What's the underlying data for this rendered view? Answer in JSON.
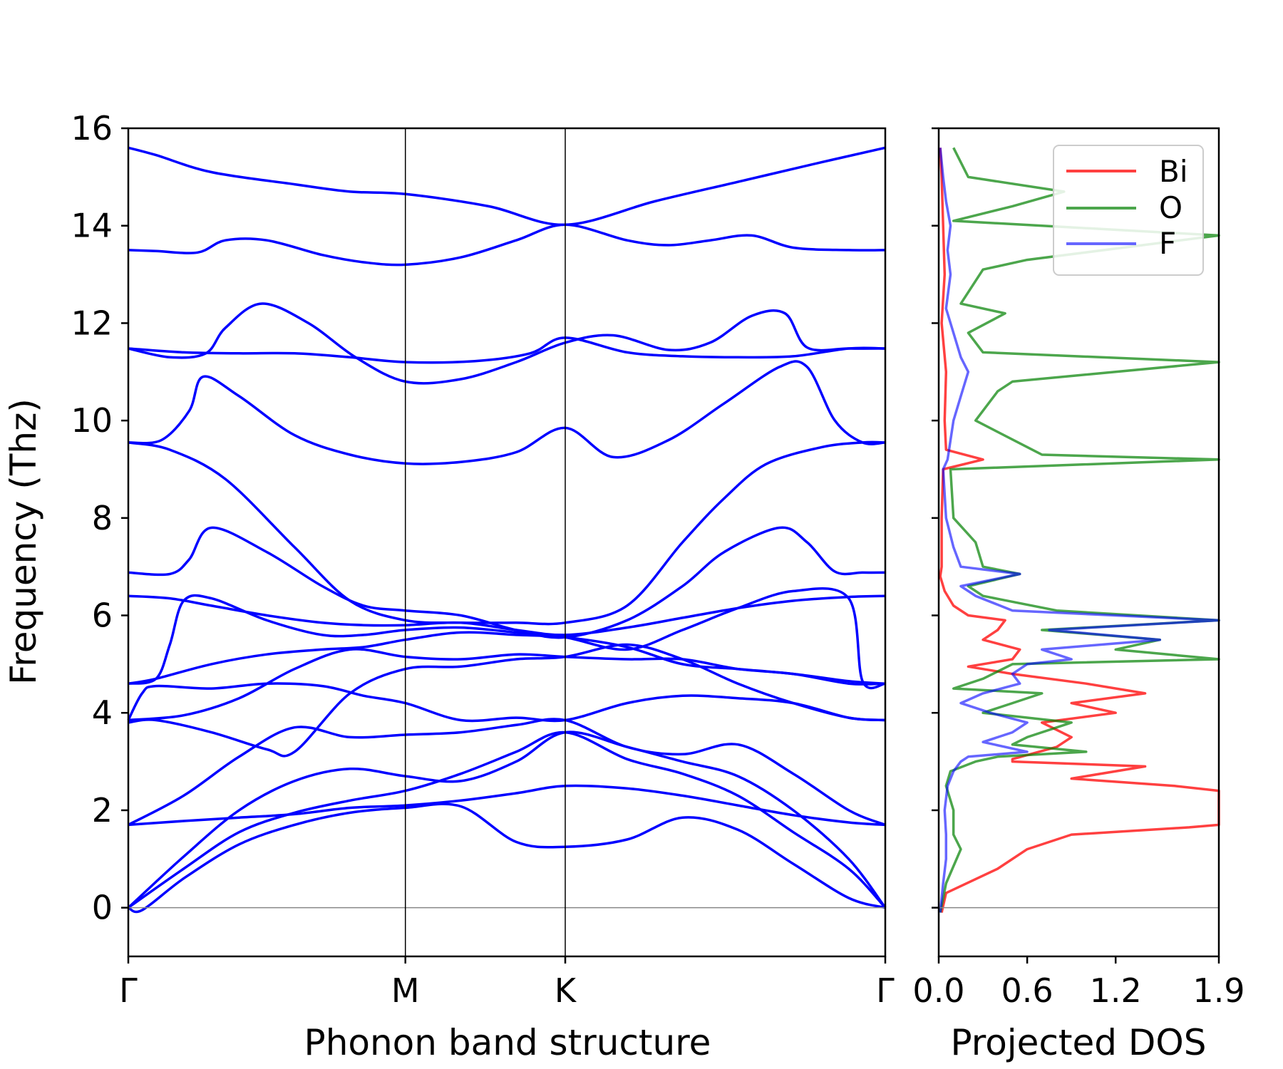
{
  "chart_data": [
    {
      "type": "line",
      "xlabel": "Phonon band structure",
      "ylabel": "Frequency (Thz)",
      "ylim": [
        -1,
        16
      ],
      "yticks": [
        "0",
        "2",
        "4",
        "6",
        "8",
        "10",
        "12",
        "14",
        "16"
      ],
      "x_points": [
        "Γ",
        "M",
        "K",
        "Γ"
      ],
      "x_point_positions": [
        0,
        1,
        1.577,
        2.732
      ],
      "grid": false,
      "color": "#0000ff",
      "series": [
        {
          "x": [
            0,
            0.1,
            0.3,
            0.6,
            0.8,
            1.0,
            1.3,
            1.577,
            1.9,
            2.2,
            2.5,
            2.732
          ],
          "values": [
            15.6,
            15.45,
            15.1,
            14.85,
            14.7,
            14.65,
            14.4,
            14.02,
            14.5,
            14.9,
            15.3,
            15.6
          ]
        },
        {
          "x": [
            0,
            0.1,
            0.25,
            0.35,
            0.5,
            0.7,
            0.85,
            1.0,
            1.2,
            1.4,
            1.577,
            1.8,
            1.95,
            2.1,
            2.25,
            2.4,
            2.6,
            2.732
          ],
          "values": [
            13.5,
            13.48,
            13.45,
            13.7,
            13.7,
            13.4,
            13.25,
            13.2,
            13.35,
            13.7,
            14.02,
            13.7,
            13.6,
            13.7,
            13.8,
            13.55,
            13.5,
            13.5
          ]
        },
        {
          "x": [
            0,
            0.15,
            0.28,
            0.35,
            0.48,
            0.65,
            0.82,
            1.0,
            1.2,
            1.4,
            1.577,
            1.75,
            1.95,
            2.1,
            2.25,
            2.37,
            2.45,
            2.6,
            2.732
          ],
          "values": [
            11.48,
            11.3,
            11.38,
            11.9,
            12.4,
            12.0,
            11.3,
            10.8,
            10.85,
            11.2,
            11.6,
            11.75,
            11.45,
            11.6,
            12.15,
            12.2,
            11.5,
            11.48,
            11.48
          ]
        },
        {
          "x": [
            0,
            0.2,
            0.4,
            0.6,
            0.8,
            1.0,
            1.25,
            1.45,
            1.577,
            1.8,
            2.0,
            2.2,
            2.4,
            2.6,
            2.732
          ],
          "values": [
            11.48,
            11.4,
            11.38,
            11.38,
            11.3,
            11.2,
            11.22,
            11.38,
            11.7,
            11.4,
            11.32,
            11.3,
            11.32,
            11.48,
            11.48
          ]
        },
        {
          "x": [
            0,
            0.12,
            0.22,
            0.27,
            0.4,
            0.6,
            0.8,
            1.0,
            1.2,
            1.4,
            1.577,
            1.75,
            1.95,
            2.15,
            2.35,
            2.45,
            2.55,
            2.65,
            2.732
          ],
          "values": [
            9.55,
            9.6,
            10.2,
            10.9,
            10.5,
            9.7,
            9.3,
            9.12,
            9.15,
            9.35,
            9.85,
            9.25,
            9.6,
            10.35,
            11.1,
            11.1,
            10.0,
            9.55,
            9.55
          ]
        },
        {
          "x": [
            0,
            0.15,
            0.35,
            0.6,
            0.8,
            1.0,
            1.2,
            1.4,
            1.577,
            1.8,
            2.0,
            2.15,
            2.3,
            2.5,
            2.65,
            2.732
          ],
          "values": [
            9.55,
            9.4,
            8.8,
            7.4,
            6.3,
            5.9,
            5.85,
            5.85,
            5.85,
            6.2,
            7.5,
            8.4,
            9.1,
            9.45,
            9.55,
            9.55
          ]
        },
        {
          "x": [
            0,
            0.15,
            0.22,
            0.3,
            0.5,
            0.7,
            0.85,
            1.0,
            1.2,
            1.4,
            1.577,
            1.8,
            2.0,
            2.15,
            2.35,
            2.45,
            2.55,
            2.65,
            2.732
          ],
          "values": [
            6.88,
            6.85,
            7.15,
            7.8,
            7.3,
            6.6,
            6.2,
            6.1,
            6.0,
            5.7,
            5.55,
            5.9,
            6.6,
            7.3,
            7.8,
            7.5,
            6.9,
            6.88,
            6.88
          ]
        },
        {
          "x": [
            0,
            0.15,
            0.3,
            0.5,
            0.7,
            0.85,
            1.0,
            1.2,
            1.4,
            1.577,
            1.8,
            2.0,
            2.2,
            2.4,
            2.6,
            2.732
          ],
          "values": [
            6.4,
            6.35,
            6.2,
            6.0,
            5.85,
            5.8,
            5.8,
            5.85,
            5.7,
            5.6,
            5.75,
            5.95,
            6.15,
            6.3,
            6.38,
            6.4
          ]
        },
        {
          "x": [
            0,
            0.1,
            0.15,
            0.2,
            0.3,
            0.5,
            0.7,
            0.85,
            1.0,
            1.2,
            1.4,
            1.577,
            1.8,
            2.0,
            2.2,
            2.4,
            2.6,
            2.65,
            2.732
          ],
          "values": [
            4.6,
            4.7,
            5.4,
            6.3,
            6.35,
            5.9,
            5.6,
            5.6,
            5.7,
            5.75,
            5.65,
            5.55,
            5.3,
            5.7,
            6.15,
            6.5,
            6.35,
            4.65,
            4.6
          ]
        },
        {
          "x": [
            0,
            0.1,
            0.3,
            0.5,
            0.7,
            0.85,
            1.0,
            1.2,
            1.4,
            1.577,
            1.8,
            2.0,
            2.2,
            2.4,
            2.6,
            2.732
          ],
          "values": [
            4.6,
            4.7,
            5.0,
            5.2,
            5.3,
            5.35,
            5.5,
            5.65,
            5.6,
            5.55,
            5.35,
            5.0,
            4.9,
            4.8,
            4.65,
            4.6
          ]
        },
        {
          "x": [
            0,
            0.05,
            0.1,
            0.3,
            0.5,
            0.7,
            0.85,
            1.0,
            1.2,
            1.4,
            1.577,
            1.8,
            2.0,
            2.2,
            2.4,
            2.6,
            2.732
          ],
          "values": [
            3.85,
            4.4,
            4.55,
            4.5,
            4.6,
            4.55,
            4.35,
            4.2,
            3.85,
            3.9,
            3.85,
            4.2,
            4.35,
            4.3,
            4.2,
            3.9,
            3.85
          ]
        },
        {
          "x": [
            0,
            0.2,
            0.4,
            0.6,
            0.8,
            1.0,
            1.2,
            1.4,
            1.577,
            1.8,
            2.0,
            2.2,
            2.4,
            2.6,
            2.732
          ],
          "values": [
            3.85,
            3.95,
            4.3,
            4.9,
            5.3,
            5.15,
            5.1,
            5.2,
            5.15,
            5.1,
            5.1,
            4.9,
            4.8,
            4.6,
            4.6
          ]
        },
        {
          "x": [
            0,
            0.1,
            0.3,
            0.5,
            0.6,
            0.8,
            1.0,
            1.2,
            1.4,
            1.577,
            1.8,
            2.0,
            2.2,
            2.4,
            2.6,
            2.732
          ],
          "values": [
            3.8,
            3.85,
            3.6,
            3.25,
            3.2,
            4.4,
            4.9,
            4.95,
            5.1,
            5.15,
            5.4,
            5.1,
            4.6,
            4.2,
            3.9,
            3.85
          ]
        },
        {
          "x": [
            0,
            0.2,
            0.4,
            0.6,
            0.8,
            1.0,
            1.2,
            1.4,
            1.577,
            1.8,
            2.0,
            2.2,
            2.4,
            2.6,
            2.732
          ],
          "values": [
            1.7,
            2.3,
            3.1,
            3.7,
            3.5,
            3.55,
            3.6,
            3.75,
            3.85,
            3.3,
            3.15,
            3.35,
            2.75,
            2.0,
            1.7
          ]
        },
        {
          "x": [
            0,
            0.2,
            0.4,
            0.6,
            0.8,
            1.0,
            1.2,
            1.4,
            1.577,
            1.8,
            2.0,
            2.2,
            2.4,
            2.6,
            2.732
          ],
          "values": [
            0,
            1.05,
            2.0,
            2.6,
            2.85,
            2.7,
            2.6,
            3.0,
            3.6,
            3.3,
            3.0,
            2.7,
            2.0,
            1.0,
            0
          ]
        },
        {
          "x": [
            0,
            0.2,
            0.4,
            0.6,
            0.8,
            1.0,
            1.2,
            1.4,
            1.577,
            1.8,
            2.0,
            2.2,
            2.4,
            2.6,
            2.732
          ],
          "values": [
            0,
            0.8,
            1.55,
            1.95,
            2.2,
            2.4,
            2.75,
            3.2,
            3.6,
            3.05,
            2.75,
            2.3,
            1.55,
            0.8,
            0
          ]
        },
        {
          "x": [
            0,
            0.2,
            0.4,
            0.6,
            0.8,
            1.0,
            1.2,
            1.4,
            1.577,
            1.8,
            2.0,
            2.2,
            2.4,
            2.6,
            2.732
          ],
          "values": [
            1.7,
            1.78,
            1.85,
            1.92,
            2.05,
            2.1,
            2.2,
            2.35,
            2.5,
            2.45,
            2.3,
            2.1,
            1.9,
            1.75,
            1.7
          ]
        },
        {
          "x": [
            0,
            0.05,
            0.2,
            0.4,
            0.6,
            0.8,
            1.0,
            1.2,
            1.4,
            1.577,
            1.8,
            2.0,
            2.2,
            2.4,
            2.6,
            2.732
          ],
          "values": [
            0,
            -0.05,
            0.6,
            1.3,
            1.7,
            1.95,
            2.05,
            2.08,
            1.35,
            1.25,
            1.4,
            1.85,
            1.6,
            0.9,
            0.2,
            0
          ]
        }
      ]
    },
    {
      "type": "line",
      "xlabel": "Projected DOS",
      "ylim": [
        -1,
        16
      ],
      "xlim": [
        0,
        1.9
      ],
      "xticks": [
        "0.0",
        "0.6",
        "1.2",
        "1.9"
      ],
      "xtick_values": [
        0,
        0.6,
        1.2,
        1.9
      ],
      "grid": false,
      "legend": "top-right",
      "series": [
        {
          "name": "Bi",
          "color": "#ff0000",
          "y": [
            -0.1,
            0.3,
            0.8,
            1.2,
            1.5,
            1.65,
            1.7,
            2.0,
            2.4,
            2.5,
            2.65,
            2.9,
            3.0,
            3.05,
            3.3,
            3.5,
            3.8,
            4.0,
            4.2,
            4.4,
            4.6,
            4.8,
            4.95,
            5.1,
            5.3,
            5.5,
            5.7,
            5.9,
            6.0,
            6.2,
            6.5,
            6.8,
            7.0,
            8.0,
            9.0,
            9.2,
            9.4,
            10.0,
            11.0,
            12.0,
            13.0,
            14.0,
            15.0,
            15.6
          ],
          "values": [
            0.02,
            0.05,
            0.4,
            0.6,
            0.9,
            1.7,
            1.9,
            1.9,
            1.9,
            1.6,
            0.9,
            1.4,
            0.5,
            0.5,
            0.8,
            0.9,
            0.7,
            1.2,
            0.9,
            1.4,
            1.0,
            0.5,
            0.2,
            0.5,
            0.55,
            0.3,
            0.4,
            0.45,
            0.2,
            0.1,
            0.04,
            0.01,
            0.02,
            0.02,
            0.03,
            0.3,
            0.05,
            0.04,
            0.05,
            0.02,
            0.04,
            0.03,
            0.02,
            0.01
          ]
        },
        {
          "name": "O",
          "color": "#008000",
          "y": [
            -0.1,
            0.5,
            1.2,
            1.5,
            2.0,
            2.5,
            2.8,
            3.0,
            3.1,
            3.2,
            3.35,
            3.5,
            3.8,
            4.0,
            4.2,
            4.4,
            4.5,
            4.7,
            5.0,
            5.1,
            5.3,
            5.5,
            5.7,
            5.9,
            6.1,
            6.4,
            6.6,
            6.85,
            7.0,
            7.5,
            8.0,
            9.0,
            9.2,
            9.3,
            10.0,
            10.6,
            10.8,
            11.2,
            11.4,
            11.8,
            12.2,
            12.4,
            13.1,
            13.3,
            13.8,
            14.1,
            14.4,
            14.7,
            15.0,
            15.6
          ],
          "values": [
            0.01,
            0.05,
            0.15,
            0.1,
            0.1,
            0.05,
            0.08,
            0.25,
            0.4,
            1.0,
            0.5,
            0.6,
            0.9,
            0.3,
            0.5,
            0.7,
            0.1,
            0.3,
            0.5,
            1.9,
            1.2,
            1.5,
            0.7,
            1.9,
            0.8,
            0.3,
            0.2,
            0.55,
            0.3,
            0.25,
            0.1,
            0.08,
            1.9,
            0.7,
            0.25,
            0.4,
            0.5,
            1.9,
            0.3,
            0.2,
            0.45,
            0.15,
            0.3,
            0.6,
            1.9,
            0.1,
            0.5,
            0.85,
            0.2,
            0.1
          ]
        },
        {
          "name": "F",
          "color": "#0000ff",
          "y": [
            -0.1,
            0.5,
            1.0,
            1.5,
            2.0,
            2.5,
            2.8,
            3.0,
            3.1,
            3.2,
            3.4,
            3.6,
            3.8,
            4.0,
            4.2,
            4.4,
            4.6,
            4.8,
            5.0,
            5.1,
            5.3,
            5.5,
            5.7,
            5.9,
            6.1,
            6.4,
            6.6,
            6.85,
            7.0,
            7.4,
            8.0,
            9.0,
            9.2,
            10.0,
            10.5,
            11.0,
            11.3,
            11.8,
            12.3,
            13.0,
            13.5,
            14.0,
            14.5,
            15.0,
            15.6
          ],
          "values": [
            0.01,
            0.03,
            0.05,
            0.05,
            0.04,
            0.06,
            0.1,
            0.15,
            0.2,
            0.6,
            0.3,
            0.5,
            0.6,
            0.35,
            0.15,
            0.3,
            0.55,
            0.5,
            0.6,
            0.9,
            0.7,
            1.5,
            0.75,
            1.9,
            0.5,
            0.25,
            0.15,
            0.55,
            0.15,
            0.1,
            0.05,
            0.03,
            0.06,
            0.1,
            0.15,
            0.2,
            0.15,
            0.1,
            0.05,
            0.08,
            0.06,
            0.08,
            0.05,
            0.03,
            0.01
          ]
        }
      ]
    }
  ]
}
